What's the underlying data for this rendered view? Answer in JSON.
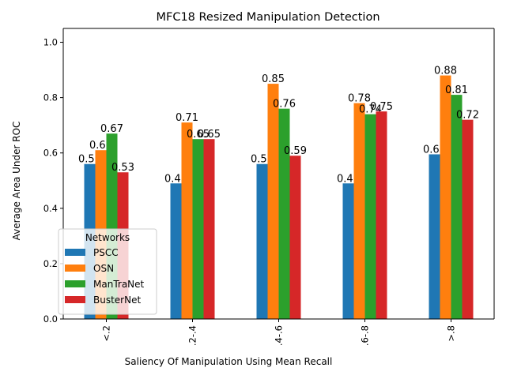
{
  "chart_data": {
    "type": "bar",
    "title": "MFC18 Resized Manipulation Detection",
    "xlabel": "Saliency Of Manipulation Using Mean Recall",
    "ylabel": "Average Area Under ROC",
    "categories": [
      "<.2",
      ".2-.4",
      ".4-.6",
      ".6-.8",
      ">.8"
    ],
    "ylim": [
      0,
      1.05
    ],
    "yticks": [
      "0.0",
      "0.2",
      "0.4",
      "0.6",
      "0.8",
      "1.0"
    ],
    "grid": false,
    "legend": {
      "title": "Networks",
      "placement": "lower-left"
    },
    "series": [
      {
        "name": "PSCC",
        "color": "#1f77b4",
        "values": [
          0.56,
          0.49,
          0.56,
          0.49,
          0.595
        ],
        "labels": [
          "0.56",
          "0.49",
          "0.56",
          "0.49",
          "0.60"
        ]
      },
      {
        "name": "OSN",
        "color": "#ff7f0e",
        "values": [
          0.61,
          0.71,
          0.85,
          0.78,
          0.88
        ],
        "labels": [
          "0.61",
          "0.71",
          "0.85",
          "0.78",
          "0.88"
        ]
      },
      {
        "name": "ManTraNet",
        "color": "#2ca02c",
        "values": [
          0.67,
          0.65,
          0.76,
          0.74,
          0.81
        ],
        "labels": [
          "0.67",
          "0.65",
          "0.76",
          "0.74",
          "0.81"
        ]
      },
      {
        "name": "BusterNet",
        "color": "#d62728",
        "values": [
          0.53,
          0.65,
          0.59,
          0.75,
          0.72
        ],
        "labels": [
          "0.53",
          "0.65",
          "0.59",
          "0.75",
          "0.72"
        ]
      }
    ]
  }
}
